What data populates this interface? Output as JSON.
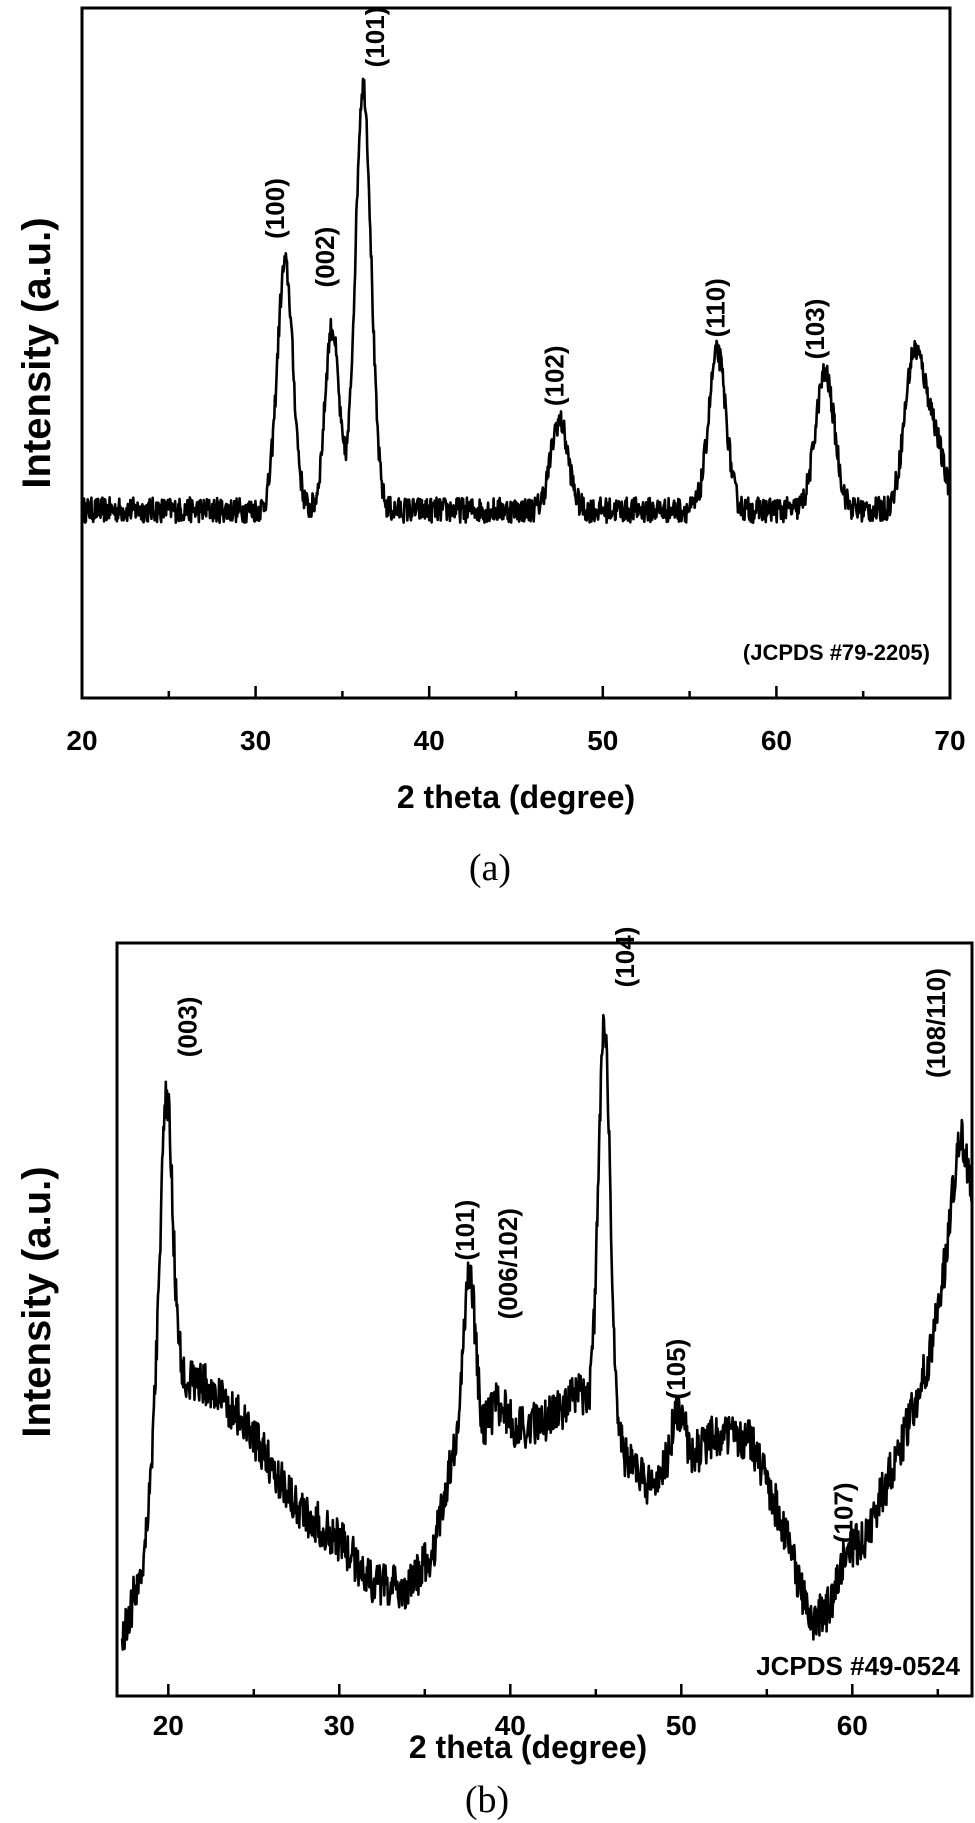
{
  "chart_data": [
    {
      "type": "line",
      "panel_label": "(a)",
      "xlabel": "2 theta (degree)",
      "ylabel": "Intensity (a.u.)",
      "xlim": [
        20,
        70
      ],
      "x_ticks": [
        20,
        30,
        40,
        50,
        60,
        70
      ],
      "y_ticks_visible": false,
      "grid": false,
      "annotation": "(JCPDS #79-2205)",
      "baseline": 0.0,
      "peaks": [
        {
          "x": 31.7,
          "y": 0.58,
          "w": 0.45,
          "label": "(100)"
        },
        {
          "x": 34.4,
          "y": 0.43,
          "w": 0.4,
          "label": "(002)"
        },
        {
          "x": 36.2,
          "y": 1.0,
          "w": 0.45,
          "label": "(101)"
        },
        {
          "x": 47.5,
          "y": 0.21,
          "w": 0.5,
          "label": "(102)"
        },
        {
          "x": 56.6,
          "y": 0.37,
          "w": 0.5,
          "label": "(110)"
        },
        {
          "x": 62.8,
          "y": 0.32,
          "w": 0.55,
          "label": "(103)"
        },
        {
          "x": 67.9,
          "y": 0.34,
          "w": 0.55,
          "label": ""
        },
        {
          "x": 69.0,
          "y": 0.18,
          "w": 0.6,
          "label": ""
        }
      ],
      "noise": 0.03
    },
    {
      "type": "line",
      "panel_label": "(b)",
      "xlabel": "2 theta (degree)",
      "ylabel": "Intensity (a.u.)",
      "xlim": [
        17,
        67
      ],
      "x_ticks": [
        20,
        30,
        40,
        50,
        60
      ],
      "y_ticks_visible": false,
      "grid": false,
      "annotation": "JCPDS #49-0524",
      "background": [
        [
          17.3,
          0.0
        ],
        [
          18.5,
          0.12
        ],
        [
          19.3,
          0.35
        ],
        [
          20.6,
          0.42
        ],
        [
          22,
          0.41
        ],
        [
          24,
          0.36
        ],
        [
          26,
          0.28
        ],
        [
          28,
          0.2
        ],
        [
          30,
          0.16
        ],
        [
          32,
          0.09
        ],
        [
          34,
          0.08
        ],
        [
          35.5,
          0.14
        ],
        [
          36.5,
          0.28
        ],
        [
          38,
          0.32
        ],
        [
          40,
          0.33
        ],
        [
          42,
          0.35
        ],
        [
          44,
          0.39
        ],
        [
          45,
          0.36
        ],
        [
          46.5,
          0.3
        ],
        [
          48,
          0.25
        ],
        [
          50,
          0.27
        ],
        [
          52,
          0.33
        ],
        [
          54,
          0.32
        ],
        [
          56,
          0.18
        ],
        [
          57.5,
          0.03
        ],
        [
          59,
          0.05
        ],
        [
          61,
          0.18
        ],
        [
          63,
          0.32
        ],
        [
          64.5,
          0.45
        ],
        [
          65.5,
          0.6
        ],
        [
          66.5,
          0.72
        ],
        [
          67,
          0.7
        ]
      ],
      "peaks": [
        {
          "x": 19.9,
          "y": 0.48,
          "w": 0.35,
          "label": "(003)"
        },
        {
          "x": 37.6,
          "y": 0.28,
          "w": 0.35,
          "label": "(101)"
        },
        {
          "x": 39.3,
          "y": 0.05,
          "w": 0.5,
          "label": "(006/102)"
        },
        {
          "x": 45.5,
          "y": 0.64,
          "w": 0.35,
          "label": "(104)"
        },
        {
          "x": 49.8,
          "y": 0.1,
          "w": 0.4,
          "label": "(105)"
        },
        {
          "x": 59.6,
          "y": 0.05,
          "w": 0.5,
          "label": "(107)"
        },
        {
          "x": 66.2,
          "y": 0.1,
          "w": 0.4,
          "label": "(108/110)"
        }
      ],
      "noise": 0.035
    }
  ]
}
